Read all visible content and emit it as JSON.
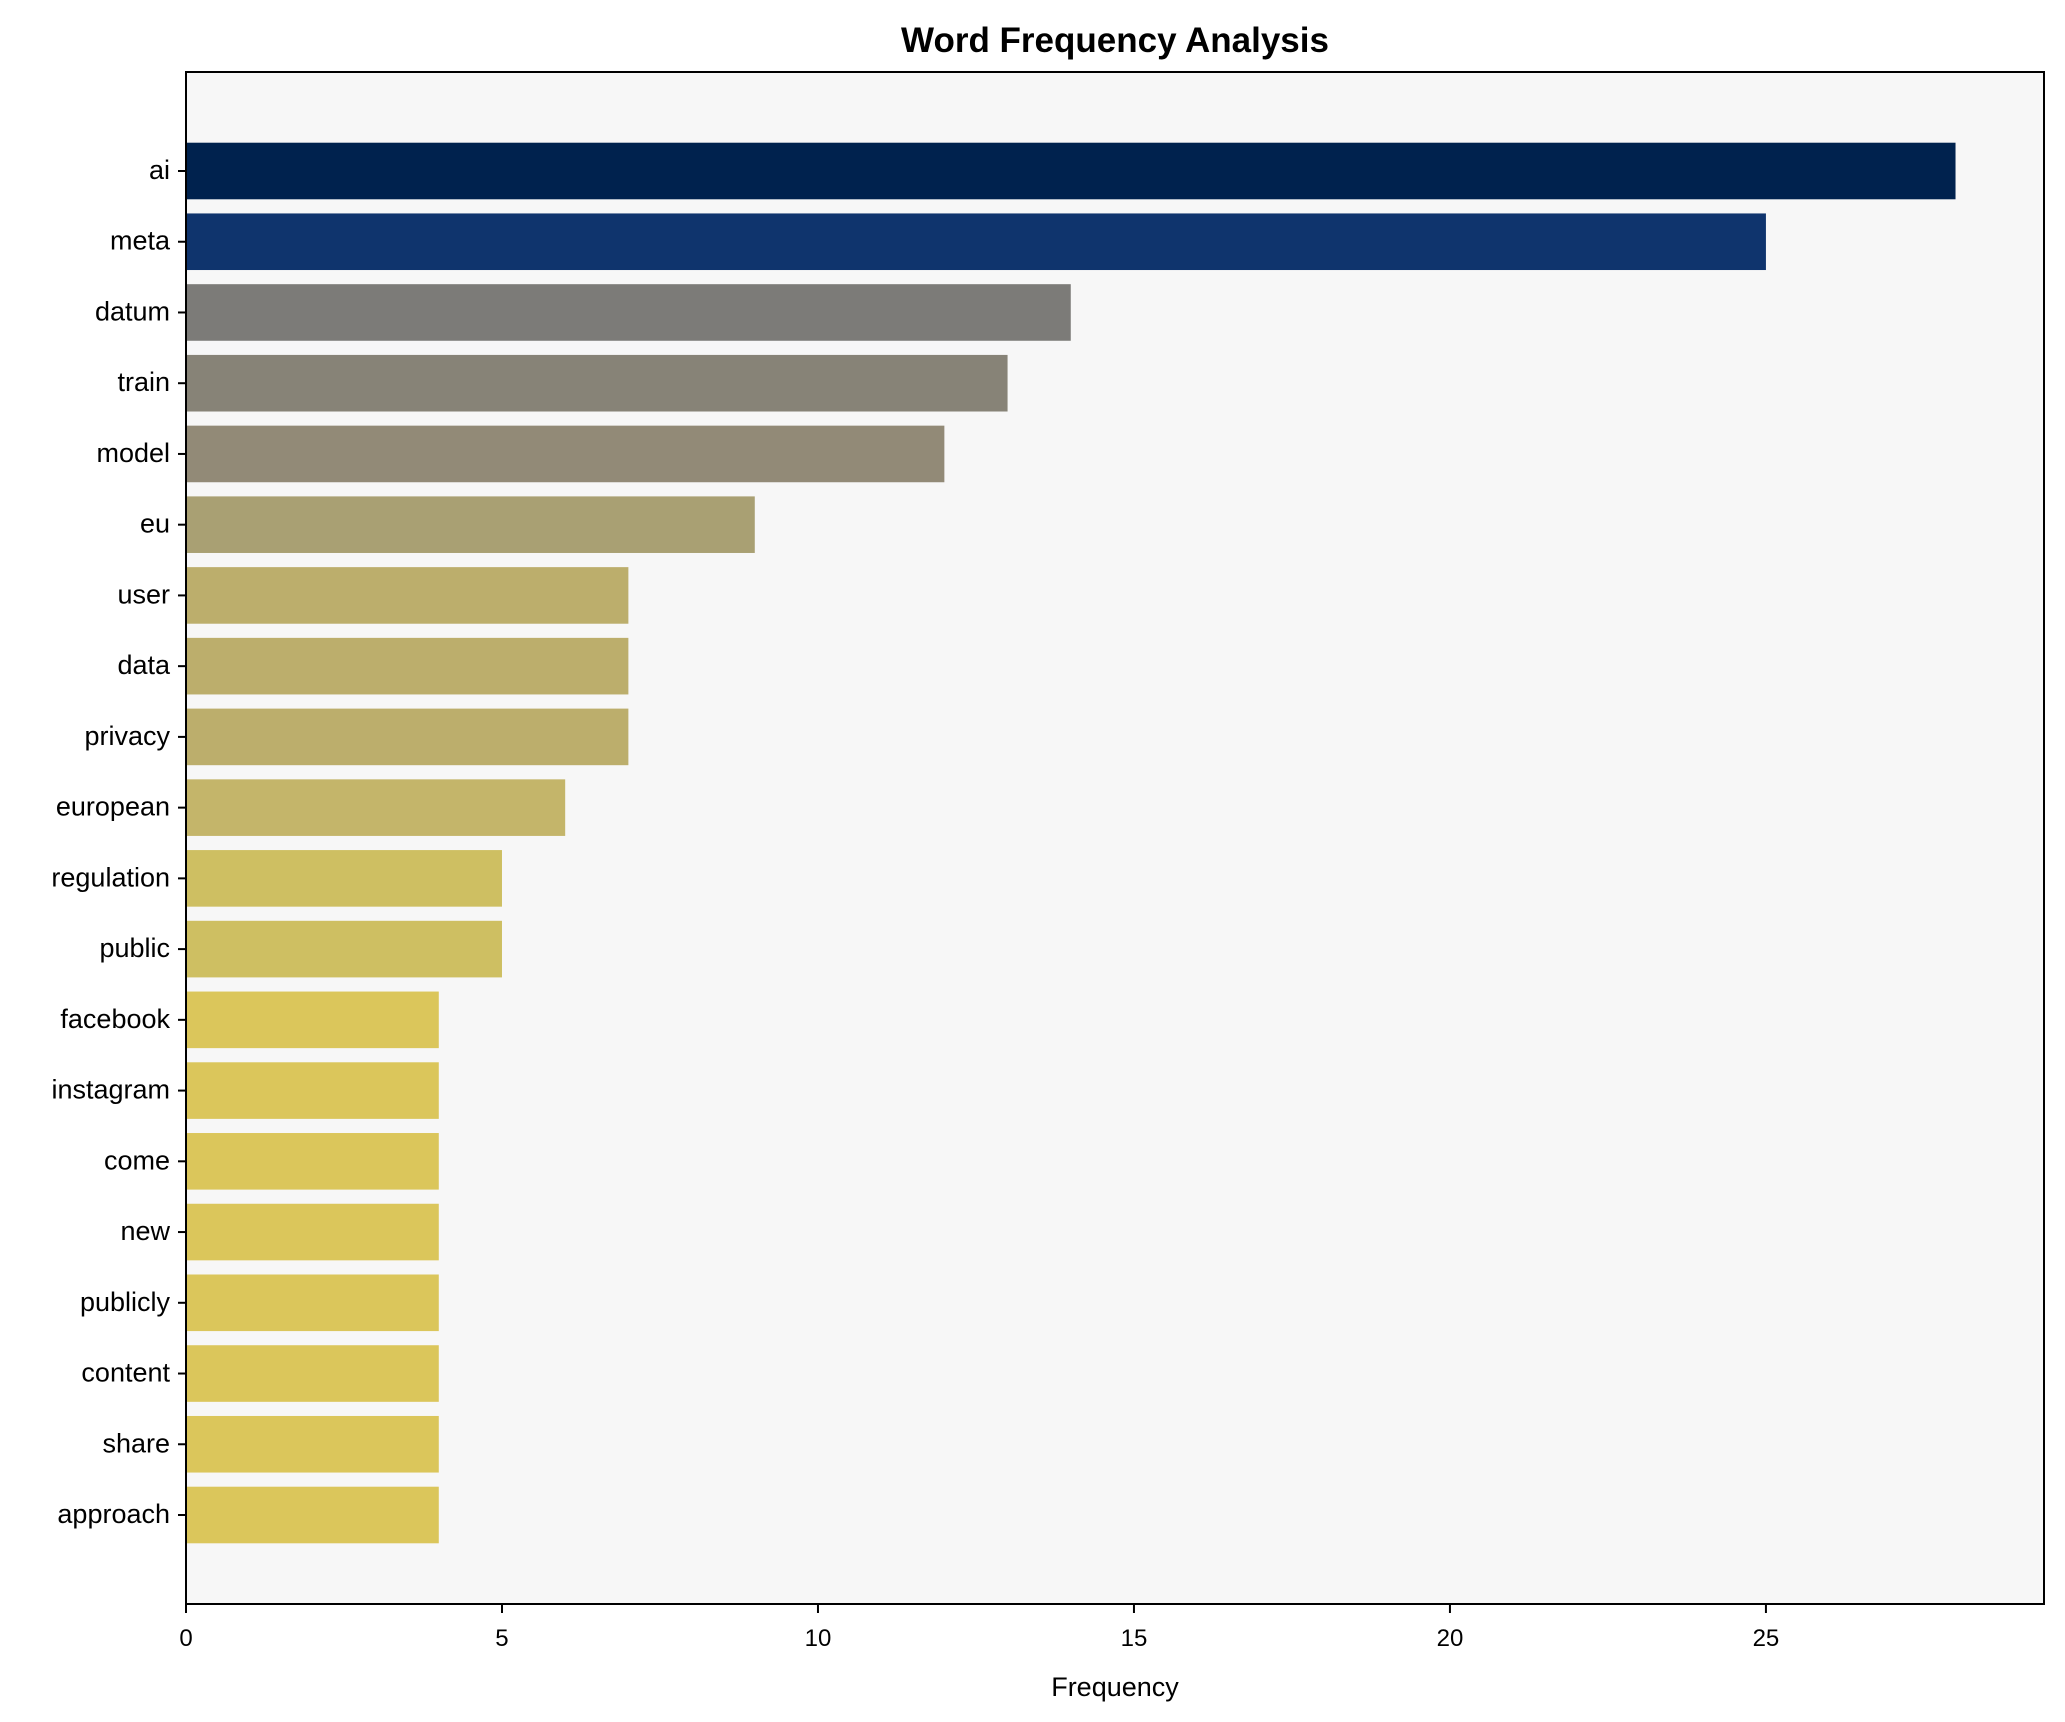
{
  "chart_data": {
    "type": "bar",
    "orientation": "horizontal",
    "title": "Word Frequency Analysis",
    "xlabel": "Frequency",
    "ylabel": "",
    "xlim": [
      0,
      29.4
    ],
    "xticks": [
      0,
      5,
      10,
      15,
      20,
      25
    ],
    "grid": false,
    "categories": [
      "ai",
      "meta",
      "datum",
      "train",
      "model",
      "eu",
      "user",
      "data",
      "privacy",
      "european",
      "regulation",
      "public",
      "facebook",
      "instagram",
      "come",
      "new",
      "publicly",
      "content",
      "share",
      "approach"
    ],
    "values": [
      28,
      25,
      14,
      13,
      12,
      9,
      7,
      7,
      7,
      6,
      5,
      5,
      4,
      4,
      4,
      4,
      4,
      4,
      4,
      4
    ],
    "colors": [
      "#00224e",
      "#0f346d",
      "#7c7b78",
      "#878377",
      "#928a77",
      "#a9a073",
      "#bcae6c",
      "#bcae6c",
      "#bcae6c",
      "#c4b56a",
      "#cebf62",
      "#cebf62",
      "#dbc65b",
      "#dbc65b",
      "#dbc65b",
      "#dbc65b",
      "#dbc65b",
      "#dbc65b",
      "#dbc65b",
      "#dbc65b"
    ],
    "background": "#f7f7f7"
  }
}
